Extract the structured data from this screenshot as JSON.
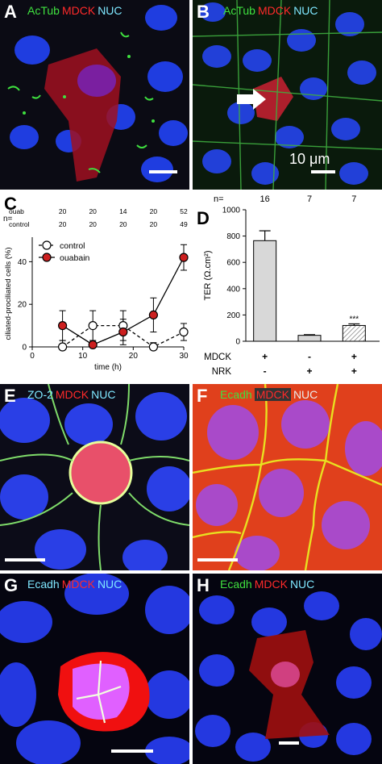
{
  "panels": {
    "A": {
      "letter": "A",
      "stain": [
        "AcTub",
        "MDCK",
        "NUC"
      ]
    },
    "B": {
      "letter": "B",
      "stain": [
        "AcTub",
        "MDCK",
        "NUC"
      ],
      "scale_text": "10 μm"
    },
    "C": {
      "letter": "C"
    },
    "D": {
      "letter": "D"
    },
    "E": {
      "letter": "E",
      "stain": [
        "ZO-2",
        "MDCK",
        "NUC"
      ]
    },
    "F": {
      "letter": "F",
      "stain": [
        "Ecadh",
        "MDCK",
        "NUC"
      ]
    },
    "G": {
      "letter": "G",
      "stain": [
        "Ecadh",
        "MDCK",
        "NUC"
      ]
    },
    "H": {
      "letter": "H",
      "stain": [
        "Ecadh",
        "MDCK",
        "NUC"
      ]
    }
  },
  "colors": {
    "green": "#3fe03f",
    "red": "#ff2a2a",
    "cyan": "#7fe7ff",
    "ouabain": "#cc1f1f"
  },
  "chart_data": [
    {
      "type": "line",
      "panel": "C",
      "n_label": "n=",
      "n_rows": [
        {
          "label": "ouab",
          "values": [
            20,
            20,
            14,
            20,
            52
          ]
        },
        {
          "label": "control",
          "values": [
            20,
            20,
            20,
            20,
            49
          ]
        }
      ],
      "x": [
        6,
        12,
        18,
        24,
        30
      ],
      "series": [
        {
          "name": "control",
          "values": [
            0,
            10,
            10,
            0,
            7
          ],
          "errors": [
            3,
            7,
            7,
            2,
            4
          ],
          "style": "dashed",
          "marker": "open-circle"
        },
        {
          "name": "ouabain",
          "values": [
            10,
            1,
            7,
            15,
            42
          ],
          "errors": [
            7,
            2,
            6,
            8,
            6
          ],
          "style": "solid",
          "marker": "filled-red-circle"
        }
      ],
      "xlabel": "time (h)",
      "ylabel": "ciliated-prociliated cells (%)",
      "xlim": [
        0,
        30
      ],
      "ylim": [
        0,
        50
      ],
      "xticks": [
        0,
        10,
        20,
        30
      ],
      "yticks": [
        0,
        20,
        40
      ],
      "legend_position": "top-left"
    },
    {
      "type": "bar",
      "panel": "D",
      "n_label": "n=",
      "n_values": [
        16,
        7,
        7
      ],
      "categories": [
        "MDCK+ NRK-",
        "MDCK- NRK+",
        "MDCK+ NRK+"
      ],
      "values": [
        765,
        45,
        120
      ],
      "errors": [
        75,
        5,
        12
      ],
      "bar_fills": [
        "#d8d8d8",
        "#d8d8d8",
        "hatched"
      ],
      "significance": [
        "",
        "",
        "***"
      ],
      "row_labels": [
        "MDCK",
        "NRK"
      ],
      "row_signs": [
        [
          "+",
          "-",
          "+"
        ],
        [
          "-",
          "+",
          "+"
        ]
      ],
      "ylabel": "TER (Ω.cm²)",
      "ylim": [
        0,
        1000
      ],
      "yticks": [
        0,
        200,
        400,
        600,
        800,
        1000
      ]
    }
  ]
}
